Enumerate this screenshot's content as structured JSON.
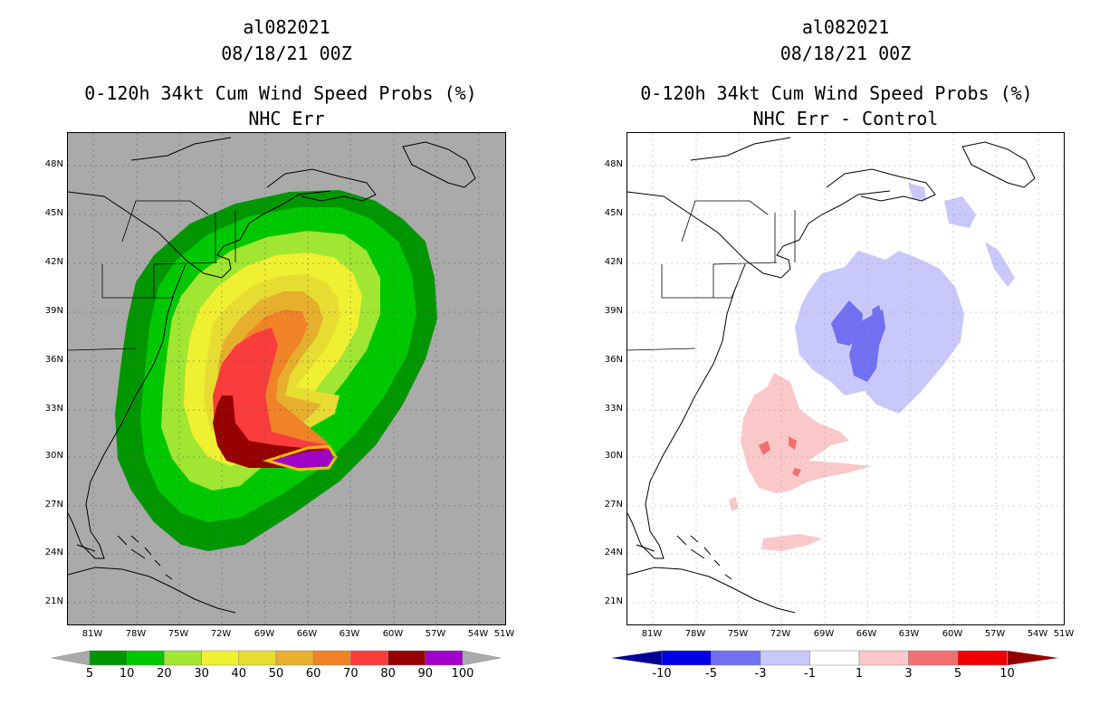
{
  "panels": [
    {
      "storm_id": "al082021",
      "date": "08/18/21 00Z",
      "product": "0-120h 34kt Cum Wind Speed Probs (%)",
      "subtitle": "NHC Err",
      "colorbar": {
        "labels": [
          "5",
          "10",
          "20",
          "30",
          "40",
          "50",
          "60",
          "70",
          "80",
          "90",
          "100"
        ],
        "colors": [
          "#009600",
          "#00c800",
          "#a0e632",
          "#f0f032",
          "#e6dc32",
          "#e6af2d",
          "#f08228",
          "#fa3c3c",
          "#960000",
          "#a000c8"
        ]
      }
    },
    {
      "storm_id": "al082021",
      "date": "08/18/21 00Z",
      "product": "0-120h 34kt Cum Wind Speed Probs (%)",
      "subtitle": "NHC Err - Control",
      "colorbar": {
        "labels": [
          "-10",
          "-5",
          "-3",
          "-1",
          "1",
          "3",
          "5",
          "10"
        ],
        "colors": [
          "#0000e6",
          "#7070f0",
          "#c8c8fa",
          "#ffffff",
          "#fac8c8",
          "#f07070",
          "#f00000"
        ]
      }
    }
  ],
  "lat_labels": [
    "48N",
    "45N",
    "42N",
    "39N",
    "36N",
    "33N",
    "30N",
    "27N",
    "24N",
    "21N"
  ],
  "lon_labels": [
    "81W",
    "78W",
    "75W",
    "72W",
    "69W",
    "66W",
    "63W",
    "60W",
    "57W",
    "54W",
    "51W"
  ],
  "map_background_left": "#aaaaaa",
  "map_background_right": "#ffffff"
}
